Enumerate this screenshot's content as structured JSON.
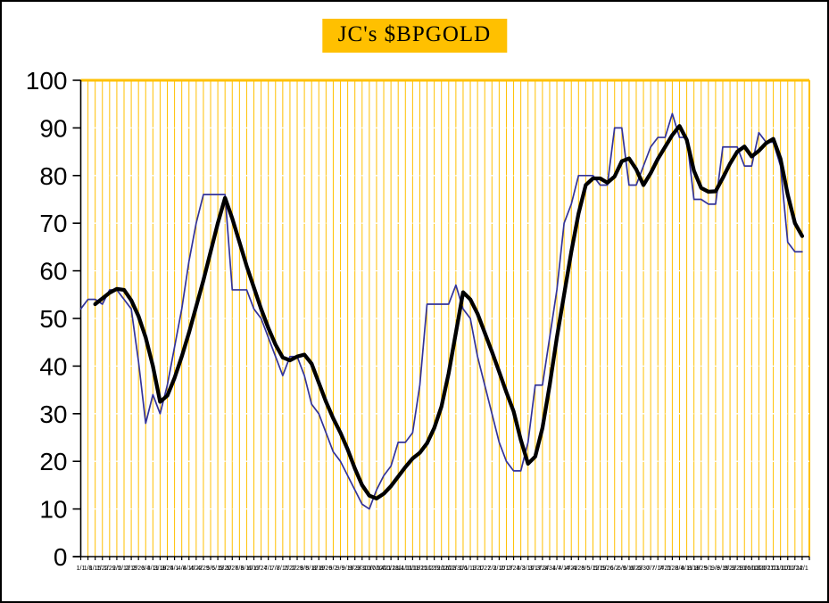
{
  "title": "JC's $BPGOLD",
  "colors": {
    "title_background": "#FFC000",
    "vertical_gridline": "#FFC000",
    "horizontal_gridline": "#FFFFFF",
    "plot_border_gold": "#FFC000",
    "axis": "#000000",
    "bpgold_line": "#333399",
    "ma_line": "#000000",
    "background": "#FFFFFF"
  },
  "chart_data": {
    "type": "line",
    "title": "JC's $BPGOLD",
    "xlabel": "",
    "ylabel": "",
    "ylim": [
      0,
      100
    ],
    "y_ticks": [
      0,
      10,
      20,
      30,
      40,
      50,
      60,
      70,
      80,
      90,
      100
    ],
    "grid": {
      "vertical": true,
      "horizontal": "faint-dashed",
      "legend_position": "none"
    },
    "x_labels": [
      "1/1",
      "1/8",
      "1/15",
      "1/22",
      "1/29",
      "2/5",
      "2/12",
      "2/19",
      "2/26",
      "3/4",
      "3/11",
      "3/18",
      "3/25",
      "4/1",
      "4/8",
      "4/15",
      "4/22",
      "4/29",
      "5/6",
      "5/13",
      "5/20",
      "5/27",
      "6/3",
      "6/10",
      "6/17",
      "6/24",
      "7/1",
      "7/8",
      "7/15",
      "7/22",
      "7/29",
      "8/5",
      "8/12",
      "8/19",
      "8/26",
      "9/2",
      "9/9",
      "9/16",
      "9/23",
      "9/30",
      "10/7",
      "10/14",
      "10/21",
      "10/28",
      "11/4",
      "11/11",
      "11/18",
      "11/25",
      "12/2",
      "12/9",
      "12/16",
      "12/23",
      "12/30",
      "1/6",
      "1/13",
      "1/20",
      "1/27",
      "2/3",
      "2/10",
      "2/17",
      "2/24",
      "3/3",
      "3/10",
      "3/17",
      "3/24",
      "3/31",
      "4/7",
      "4/14",
      "4/21",
      "4/28",
      "5/5",
      "5/12",
      "5/19",
      "5/26",
      "6/2",
      "6/9",
      "6/16",
      "6/23",
      "6/30",
      "7/7",
      "7/14",
      "7/21",
      "7/28",
      "8/4",
      "8/11",
      "8/18",
      "8/25",
      "9/1",
      "9/8",
      "9/15",
      "9/22",
      "9/29",
      "10/6",
      "10/13",
      "10/20",
      "10/27",
      "11/3",
      "11/10",
      "11/17",
      "11/24",
      "12/1"
    ],
    "series": [
      {
        "name": "bpgold_weekly",
        "color": "#333399",
        "stroke_width": 1.7,
        "values": [
          52,
          54,
          54,
          53,
          56,
          56,
          54,
          52,
          41,
          28,
          34,
          30,
          36,
          44,
          52,
          62,
          70,
          76,
          76,
          76,
          76,
          56,
          56,
          56,
          52,
          50,
          46,
          42,
          38,
          42,
          42,
          38,
          32,
          30,
          26,
          22,
          20,
          17,
          14,
          11,
          10,
          14,
          17,
          19,
          24,
          24,
          26,
          36,
          53,
          53,
          53,
          53,
          57,
          52,
          50,
          42,
          36,
          30,
          24,
          20,
          18,
          18,
          24,
          36,
          36,
          46,
          56,
          70,
          74,
          80,
          80,
          80,
          78,
          78,
          90,
          90,
          78,
          78,
          82,
          86,
          88,
          88,
          93,
          88,
          88,
          75,
          75,
          74,
          74,
          86,
          86,
          86,
          82,
          82,
          89,
          87,
          87,
          82,
          66,
          64,
          64
        ]
      },
      {
        "name": "bpgold_smoothed_ma",
        "color": "#000000",
        "stroke_width": 4.3,
        "values": [
          null,
          null,
          53,
          54.2,
          55.4,
          56.2,
          56,
          53.8,
          50.5,
          46,
          40,
          32.5,
          33.8,
          37.5,
          42,
          47,
          52.5,
          58,
          64,
          70,
          75.3,
          71,
          66,
          61,
          56.5,
          52,
          48,
          44.5,
          41.8,
          41.2,
          42,
          42.4,
          40.5,
          36.5,
          32.5,
          29,
          26,
          22.5,
          18.5,
          15,
          12.8,
          12.2,
          13.2,
          14.8,
          16.8,
          18.8,
          20.6,
          21.8,
          23.8,
          27,
          31.5,
          38.5,
          47,
          55.5,
          54,
          51,
          47,
          43,
          38.8,
          34.5,
          30.5,
          24.5,
          19.5,
          21,
          27,
          36,
          46,
          55,
          64,
          72,
          78,
          79.4,
          79.4,
          78.5,
          79.8,
          83,
          83.6,
          81.3,
          78,
          80.5,
          83.5,
          86,
          88.5,
          90.4,
          87.5,
          81,
          77.4,
          76.6,
          76.7,
          79.5,
          82.5,
          85,
          86.1,
          84,
          85.2,
          86.8,
          87.7,
          83.5,
          76,
          70,
          67.3
        ]
      }
    ]
  }
}
